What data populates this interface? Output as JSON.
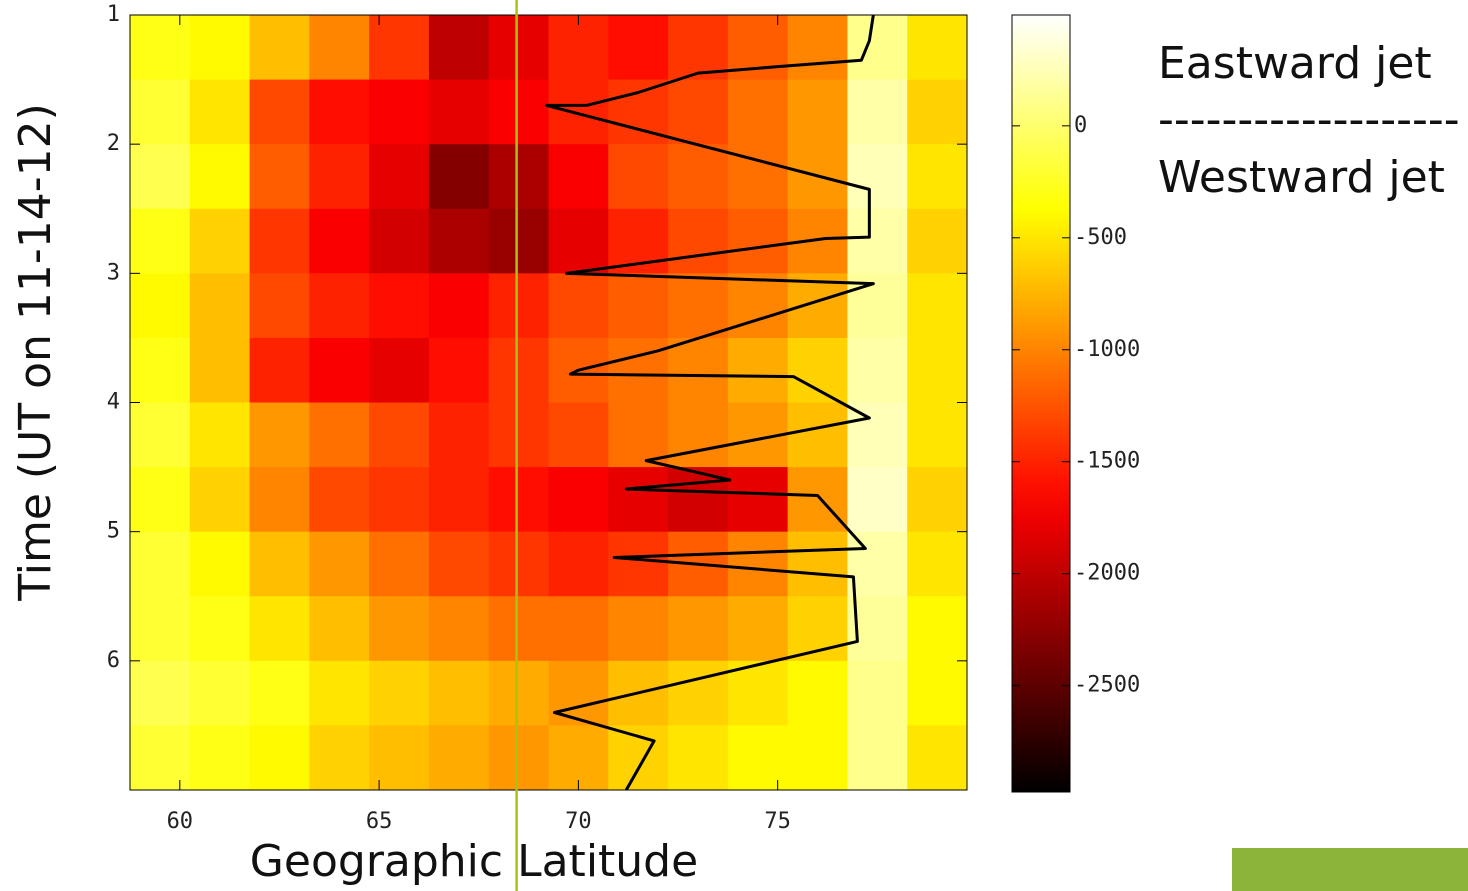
{
  "chart_data": {
    "type": "heatmap",
    "x_label": "Geographic Latitude",
    "y_label": "Time (UT on 11-14-12)",
    "x_bins": [
      58.75,
      60.25,
      61.75,
      63.25,
      64.75,
      66.25,
      67.75,
      69.25,
      70.75,
      72.25,
      73.75,
      75.25,
      76.75,
      78.25,
      79.75
    ],
    "y_bins": [
      1,
      1.5,
      2,
      2.5,
      3,
      3.5,
      4,
      4.5,
      5,
      5.5,
      6,
      6.5,
      7
    ],
    "values": [
      [
        -300,
        -400,
        -700,
        -1000,
        -1400,
        -2000,
        -1800,
        -1500,
        -1600,
        -1400,
        -1200,
        -1000,
        100,
        -500
      ],
      [
        -200,
        -500,
        -1300,
        -1600,
        -1700,
        -1800,
        -1700,
        -1500,
        -1400,
        -1300,
        -1100,
        -900,
        200,
        -600
      ],
      [
        -100,
        -400,
        -1200,
        -1500,
        -1800,
        -2300,
        -2100,
        -1700,
        -1300,
        -1200,
        -1100,
        -900,
        250,
        -500
      ],
      [
        -300,
        -600,
        -1400,
        -1700,
        -1900,
        -2100,
        -2200,
        -1800,
        -1500,
        -1300,
        -1200,
        -1000,
        200,
        -600
      ],
      [
        -400,
        -700,
        -1300,
        -1500,
        -1600,
        -1700,
        -1500,
        -1300,
        -1200,
        -1100,
        -1000,
        -800,
        150,
        -500
      ],
      [
        -300,
        -700,
        -1500,
        -1700,
        -1800,
        -1600,
        -1400,
        -1200,
        -1100,
        -1000,
        -800,
        -600,
        200,
        -500
      ],
      [
        -200,
        -500,
        -900,
        -1100,
        -1300,
        -1500,
        -1400,
        -1300,
        -1100,
        -1000,
        -900,
        -700,
        250,
        -500
      ],
      [
        -300,
        -600,
        -1000,
        -1300,
        -1400,
        -1500,
        -1600,
        -1700,
        -1800,
        -1900,
        -1800,
        -900,
        300,
        -600
      ],
      [
        -200,
        -400,
        -700,
        -900,
        -1100,
        -1300,
        -1400,
        -1500,
        -1400,
        -1200,
        -1000,
        -700,
        200,
        -500
      ],
      [
        -200,
        -300,
        -500,
        -700,
        -900,
        -1000,
        -1100,
        -1100,
        -1000,
        -900,
        -800,
        -600,
        150,
        -400
      ],
      [
        -100,
        -200,
        -300,
        -500,
        -600,
        -700,
        -800,
        -900,
        -700,
        -600,
        -500,
        -400,
        100,
        -400
      ],
      [
        -200,
        -300,
        -400,
        -600,
        -700,
        -800,
        -900,
        -800,
        -600,
        -500,
        -400,
        -400,
        100,
        -500
      ]
    ],
    "colormap": "hot",
    "clim": [
      -2975,
      495
    ],
    "cticks": [
      0,
      -500,
      -1000,
      -1500,
      -2000,
      -2500
    ],
    "xlim": [
      58.75,
      79.75
    ],
    "ylim": [
      1,
      7
    ],
    "y_inverted": true,
    "xticks": [
      60,
      65,
      70,
      75
    ],
    "yticks": [
      1,
      2,
      3,
      4,
      5,
      6
    ],
    "boundary": {
      "color": "#000000",
      "x": [
        77.4,
        77.3,
        77.1,
        75,
        73,
        71.5,
        70.2,
        69.2,
        77.3,
        77.3,
        76.2,
        69.7,
        77.4,
        72,
        70,
        69.8,
        75.4,
        77.3,
        71.7,
        73.8,
        71.2,
        76,
        77.2,
        70.9,
        76.9,
        77,
        69.4,
        71.9,
        71.2
      ],
      "y": [
        1.0,
        1.2,
        1.35,
        1.4,
        1.45,
        1.6,
        1.7,
        1.7,
        2.35,
        2.72,
        2.73,
        3.0,
        3.08,
        3.6,
        3.75,
        3.78,
        3.8,
        4.12,
        4.45,
        4.6,
        4.67,
        4.72,
        5.13,
        5.2,
        5.35,
        5.85,
        6.4,
        6.62,
        7.0
      ]
    },
    "vline": {
      "x": 68.45,
      "color": "#a8c412"
    },
    "legend_texts": [
      "Eastward jet",
      "-------------------",
      "Westward jet"
    ]
  }
}
